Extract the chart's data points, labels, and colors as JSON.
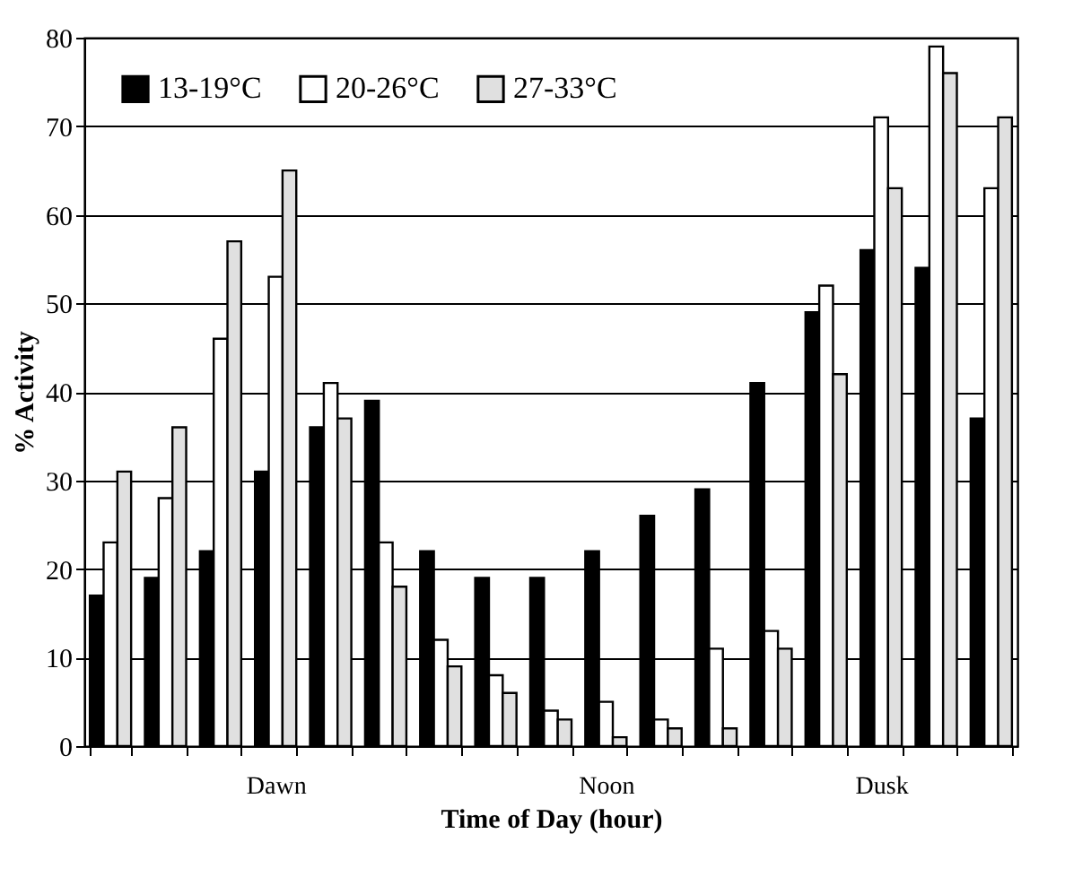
{
  "chart_data": {
    "type": "bar",
    "xlabel": "Time of Day (hour)",
    "ylabel": "% Activity",
    "categories": [
      null,
      null,
      null,
      "Dawn",
      null,
      null,
      null,
      null,
      null,
      "Noon",
      null,
      null,
      null,
      null,
      "Dusk",
      null,
      null
    ],
    "series": [
      {
        "name": "13-19°C",
        "color": "#000000",
        "values": [
          17,
          19,
          22,
          31,
          36,
          39,
          22,
          19,
          19,
          22,
          26,
          29,
          41,
          49,
          56,
          54,
          37
        ]
      },
      {
        "name": "20-26°C",
        "color": "#ffffff",
        "values": [
          23,
          28,
          46,
          53,
          41,
          23,
          12,
          8,
          4,
          5,
          3,
          11,
          13,
          52,
          71,
          79,
          63
        ]
      },
      {
        "name": "27-33°C",
        "color": "#e0e0e0",
        "values": [
          31,
          36,
          57,
          65,
          37,
          18,
          9,
          6,
          3,
          1,
          2,
          2,
          11,
          42,
          63,
          76,
          71
        ]
      }
    ],
    "ylim": [
      0,
      80
    ],
    "yticks": [
      0,
      10,
      20,
      30,
      40,
      50,
      60,
      70,
      80
    ],
    "grid": "y",
    "legend": "top left"
  }
}
